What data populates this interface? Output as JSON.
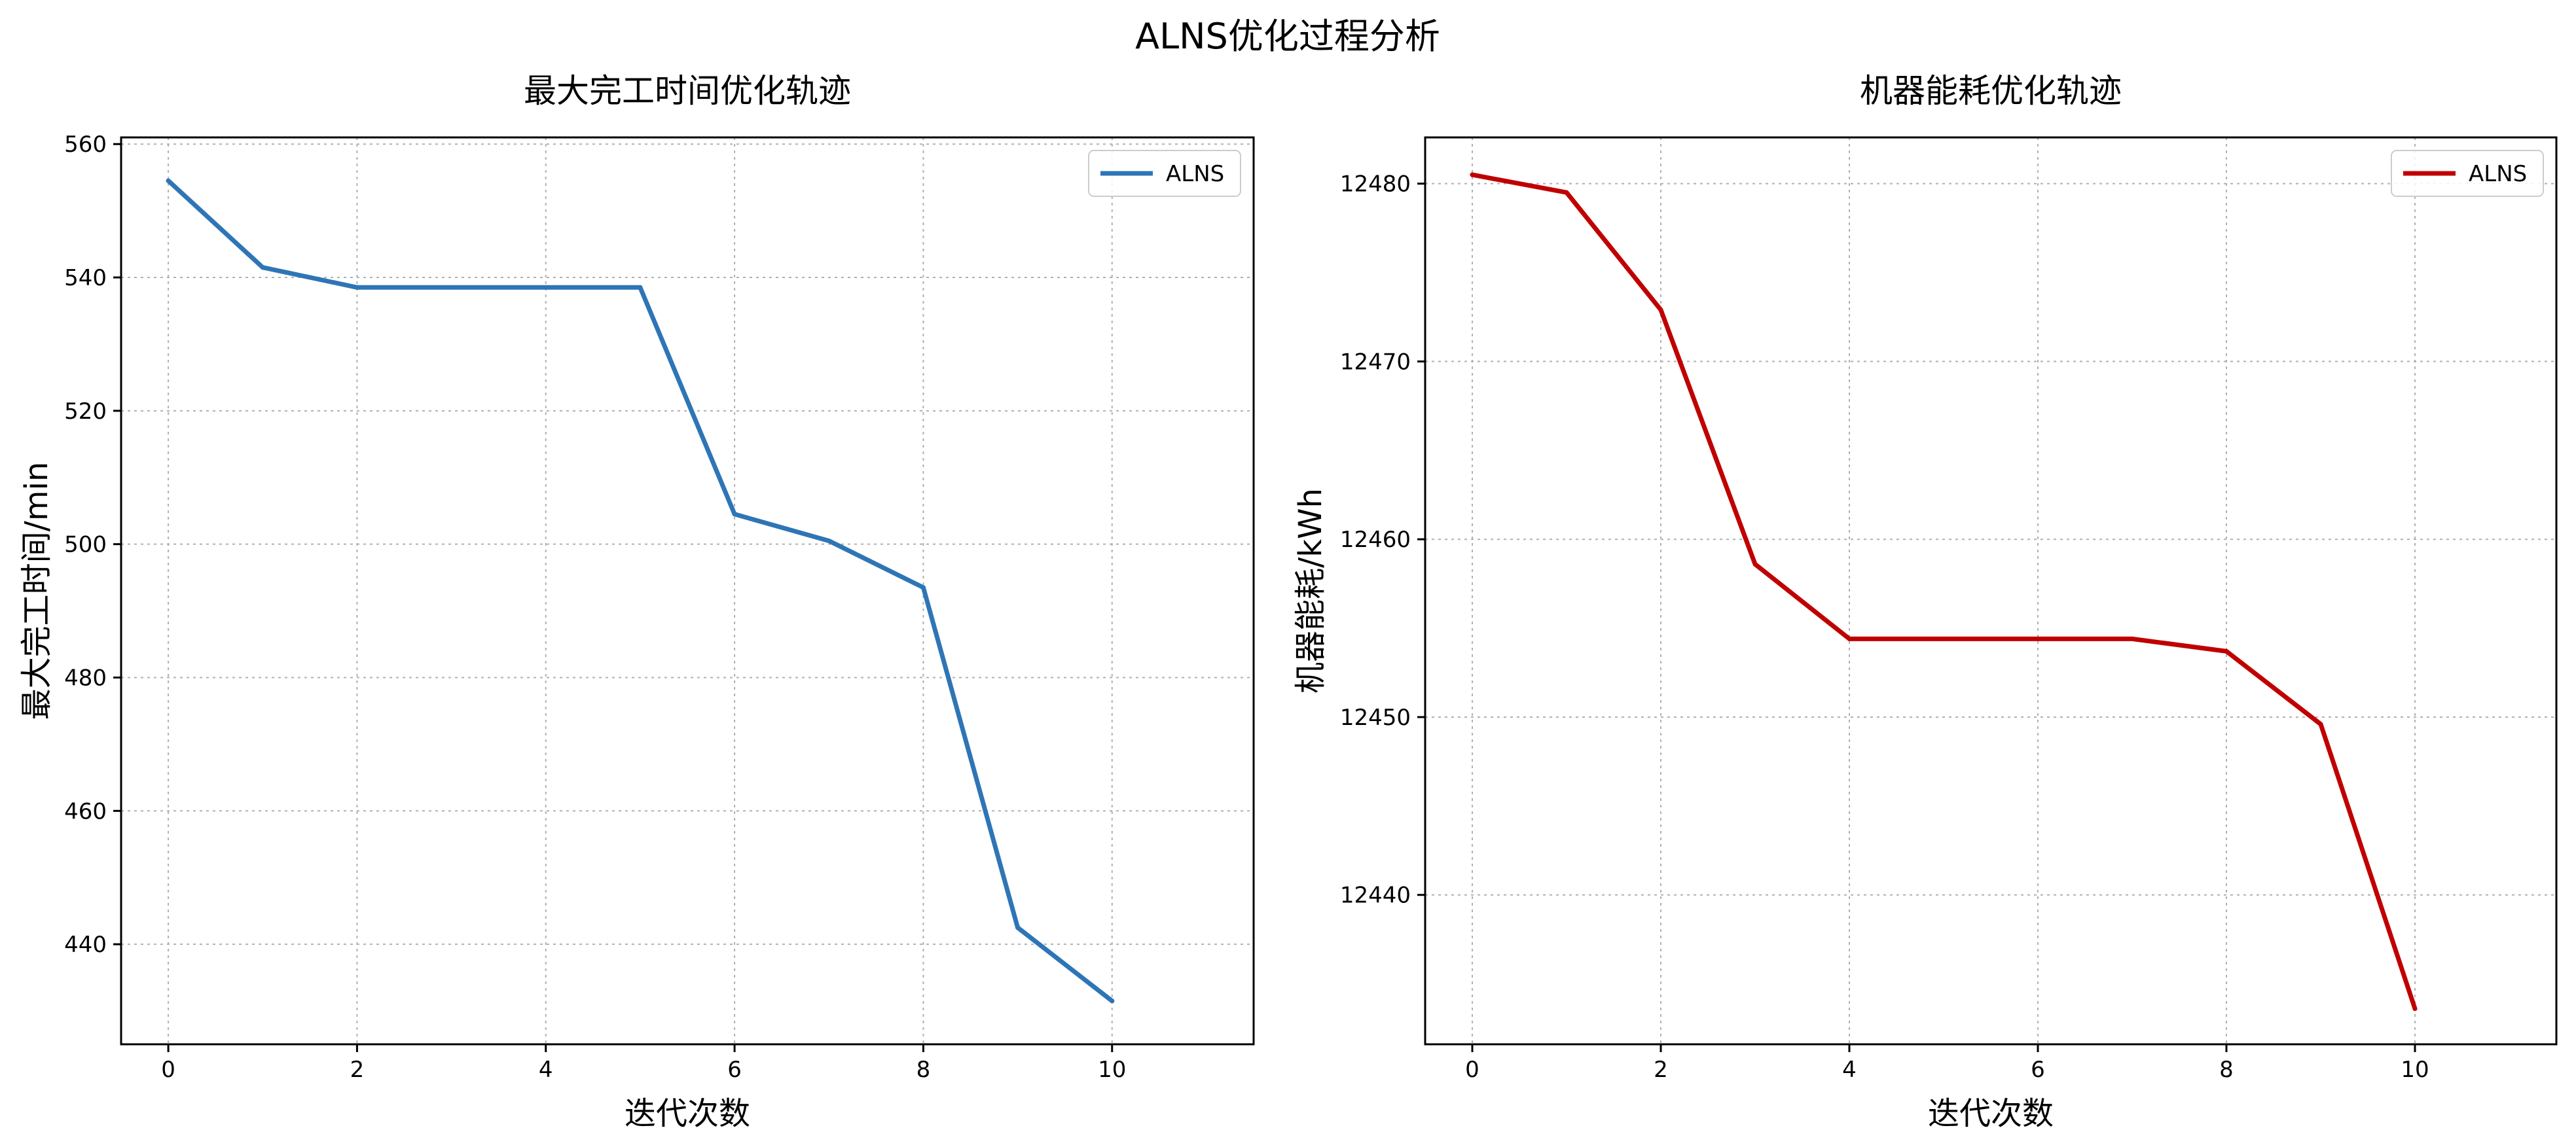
{
  "figure": {
    "suptitle": "ALNS优化过程分析"
  },
  "chart_data": [
    {
      "type": "line",
      "title": "最大完工时间优化轨迹",
      "xlabel": "迭代次数",
      "ylabel": "最大完工时间/min",
      "xlim": [
        -0.5,
        11.5
      ],
      "ylim": [
        425,
        561
      ],
      "xticks": [
        0,
        2,
        4,
        6,
        8,
        10
      ],
      "yticks": [
        440,
        460,
        480,
        500,
        520,
        540,
        560
      ],
      "grid": true,
      "legend": "top-right",
      "series": [
        {
          "name": "ALNS",
          "color": "#2e75b6",
          "x": [
            0,
            1,
            2,
            3,
            4,
            5,
            6,
            7,
            8,
            9,
            10
          ],
          "y": [
            554.5,
            541.5,
            538.5,
            538.5,
            538.5,
            538.5,
            504.5,
            500.5,
            493.5,
            442.5,
            431.5
          ]
        }
      ]
    },
    {
      "type": "line",
      "title": "机器能耗优化轨迹",
      "xlabel": "迭代次数",
      "ylabel": "机器能耗/kWh",
      "xlim": [
        -0.5,
        11.5
      ],
      "ylim": [
        12431.6,
        12482.6
      ],
      "xticks": [
        0,
        2,
        4,
        6,
        8,
        10
      ],
      "yticks": [
        12440,
        12450,
        12460,
        12470,
        12480
      ],
      "grid": true,
      "legend": "top-right",
      "series": [
        {
          "name": "ALNS",
          "color": "#c00000",
          "x": [
            0,
            1,
            2,
            3,
            4,
            5,
            6,
            7,
            8,
            9,
            10
          ],
          "y": [
            12480.5,
            12479.5,
            12472.9,
            12458.6,
            12454.4,
            12454.4,
            12454.4,
            12454.4,
            12453.7,
            12449.6,
            12433.6
          ]
        }
      ]
    }
  ]
}
